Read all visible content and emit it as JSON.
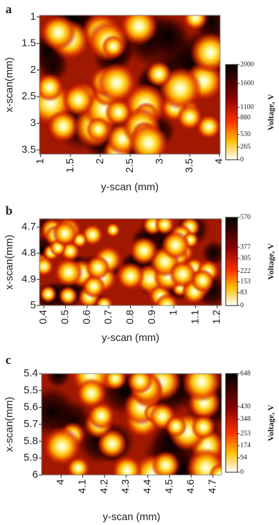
{
  "chart_data": [
    {
      "type": "heatmap",
      "panel": "a",
      "xlabel": "y-scan (mm)",
      "ylabel": "x-scan(mm)",
      "colorbar_label": "Voltage, V",
      "xlim": [
        0.98,
        4.01
      ],
      "xticks": [
        1,
        1.5,
        2,
        2.5,
        3,
        3.5,
        4
      ],
      "ylim": [
        0.97,
        3.58
      ],
      "yticks": [
        1,
        1.5,
        2,
        2.5,
        3,
        3.5
      ],
      "clim": [
        0,
        2000
      ],
      "cticks": [
        2000,
        1600,
        1100,
        880,
        530,
        265,
        0
      ],
      "colormap": "hot-reversed"
    },
    {
      "type": "heatmap",
      "panel": "b",
      "xlabel": "y-scan (mm)",
      "ylabel": "x-scan(mm)",
      "colorbar_label": "Voltage, V",
      "xlim": [
        0.38,
        1.22
      ],
      "xticks": [
        0.4,
        0.5,
        0.6,
        0.7,
        0.8,
        0.9,
        1,
        1.1,
        1.2
      ],
      "ylim": [
        4.668,
        5.0
      ],
      "yticks": [
        4.7,
        4.8,
        4.9,
        5
      ],
      "clim": [
        0,
        570
      ],
      "cticks": [
        570,
        377,
        305,
        222,
        153,
        83,
        0
      ],
      "colormap": "hot-reversed"
    },
    {
      "type": "heatmap",
      "panel": "c",
      "xlabel": "y-scan (mm)",
      "ylabel": "x-scan(mm)",
      "colorbar_label": "Voltage, V",
      "xlim": [
        3.91,
        4.74
      ],
      "xticks": [
        4,
        4.1,
        4.2,
        4.3,
        4.4,
        4.5,
        4.6,
        4.7
      ],
      "ylim": [
        5.4,
        6.0
      ],
      "yticks": [
        5.4,
        5.5,
        5.6,
        5.7,
        5.8,
        5.9,
        6
      ],
      "clim": [
        0,
        648
      ],
      "cticks": [
        648,
        430,
        348,
        253,
        174,
        94,
        0
      ],
      "colormap": "hot-reversed"
    }
  ]
}
